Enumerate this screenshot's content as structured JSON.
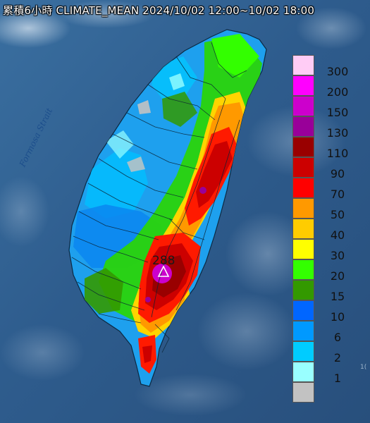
{
  "title": "累積6小時 CLIMATE_MEAN 2024/10/02 12:00~10/02 18:00",
  "sea_label": "Formosa Strait",
  "peak": {
    "label": "288",
    "marker": "triangle-icon"
  },
  "edge_mark": "1(",
  "legend": [
    {
      "label": "300",
      "color": "#ffccf5"
    },
    {
      "label": "200",
      "color": "#ff00ff"
    },
    {
      "label": "150",
      "color": "#cc00cc"
    },
    {
      "label": "130",
      "color": "#990099"
    },
    {
      "label": "110",
      "color": "#990000"
    },
    {
      "label": "90",
      "color": "#cc0000"
    },
    {
      "label": "70",
      "color": "#ff0000"
    },
    {
      "label": "50",
      "color": "#ff9900"
    },
    {
      "label": "40",
      "color": "#ffcc00"
    },
    {
      "label": "30",
      "color": "#ffff00"
    },
    {
      "label": "20",
      "color": "#33ff00"
    },
    {
      "label": "15",
      "color": "#339900"
    },
    {
      "label": "10",
      "color": "#0066ff"
    },
    {
      "label": "6",
      "color": "#0099ff"
    },
    {
      "label": "2",
      "color": "#00ccff"
    },
    {
      "label": "1",
      "color": "#99ffff"
    },
    {
      "label": "",
      "color": "#c2c2c2"
    }
  ],
  "colors": {
    "sea": "#2c5a86",
    "land_dry": "#1ea0ee"
  }
}
